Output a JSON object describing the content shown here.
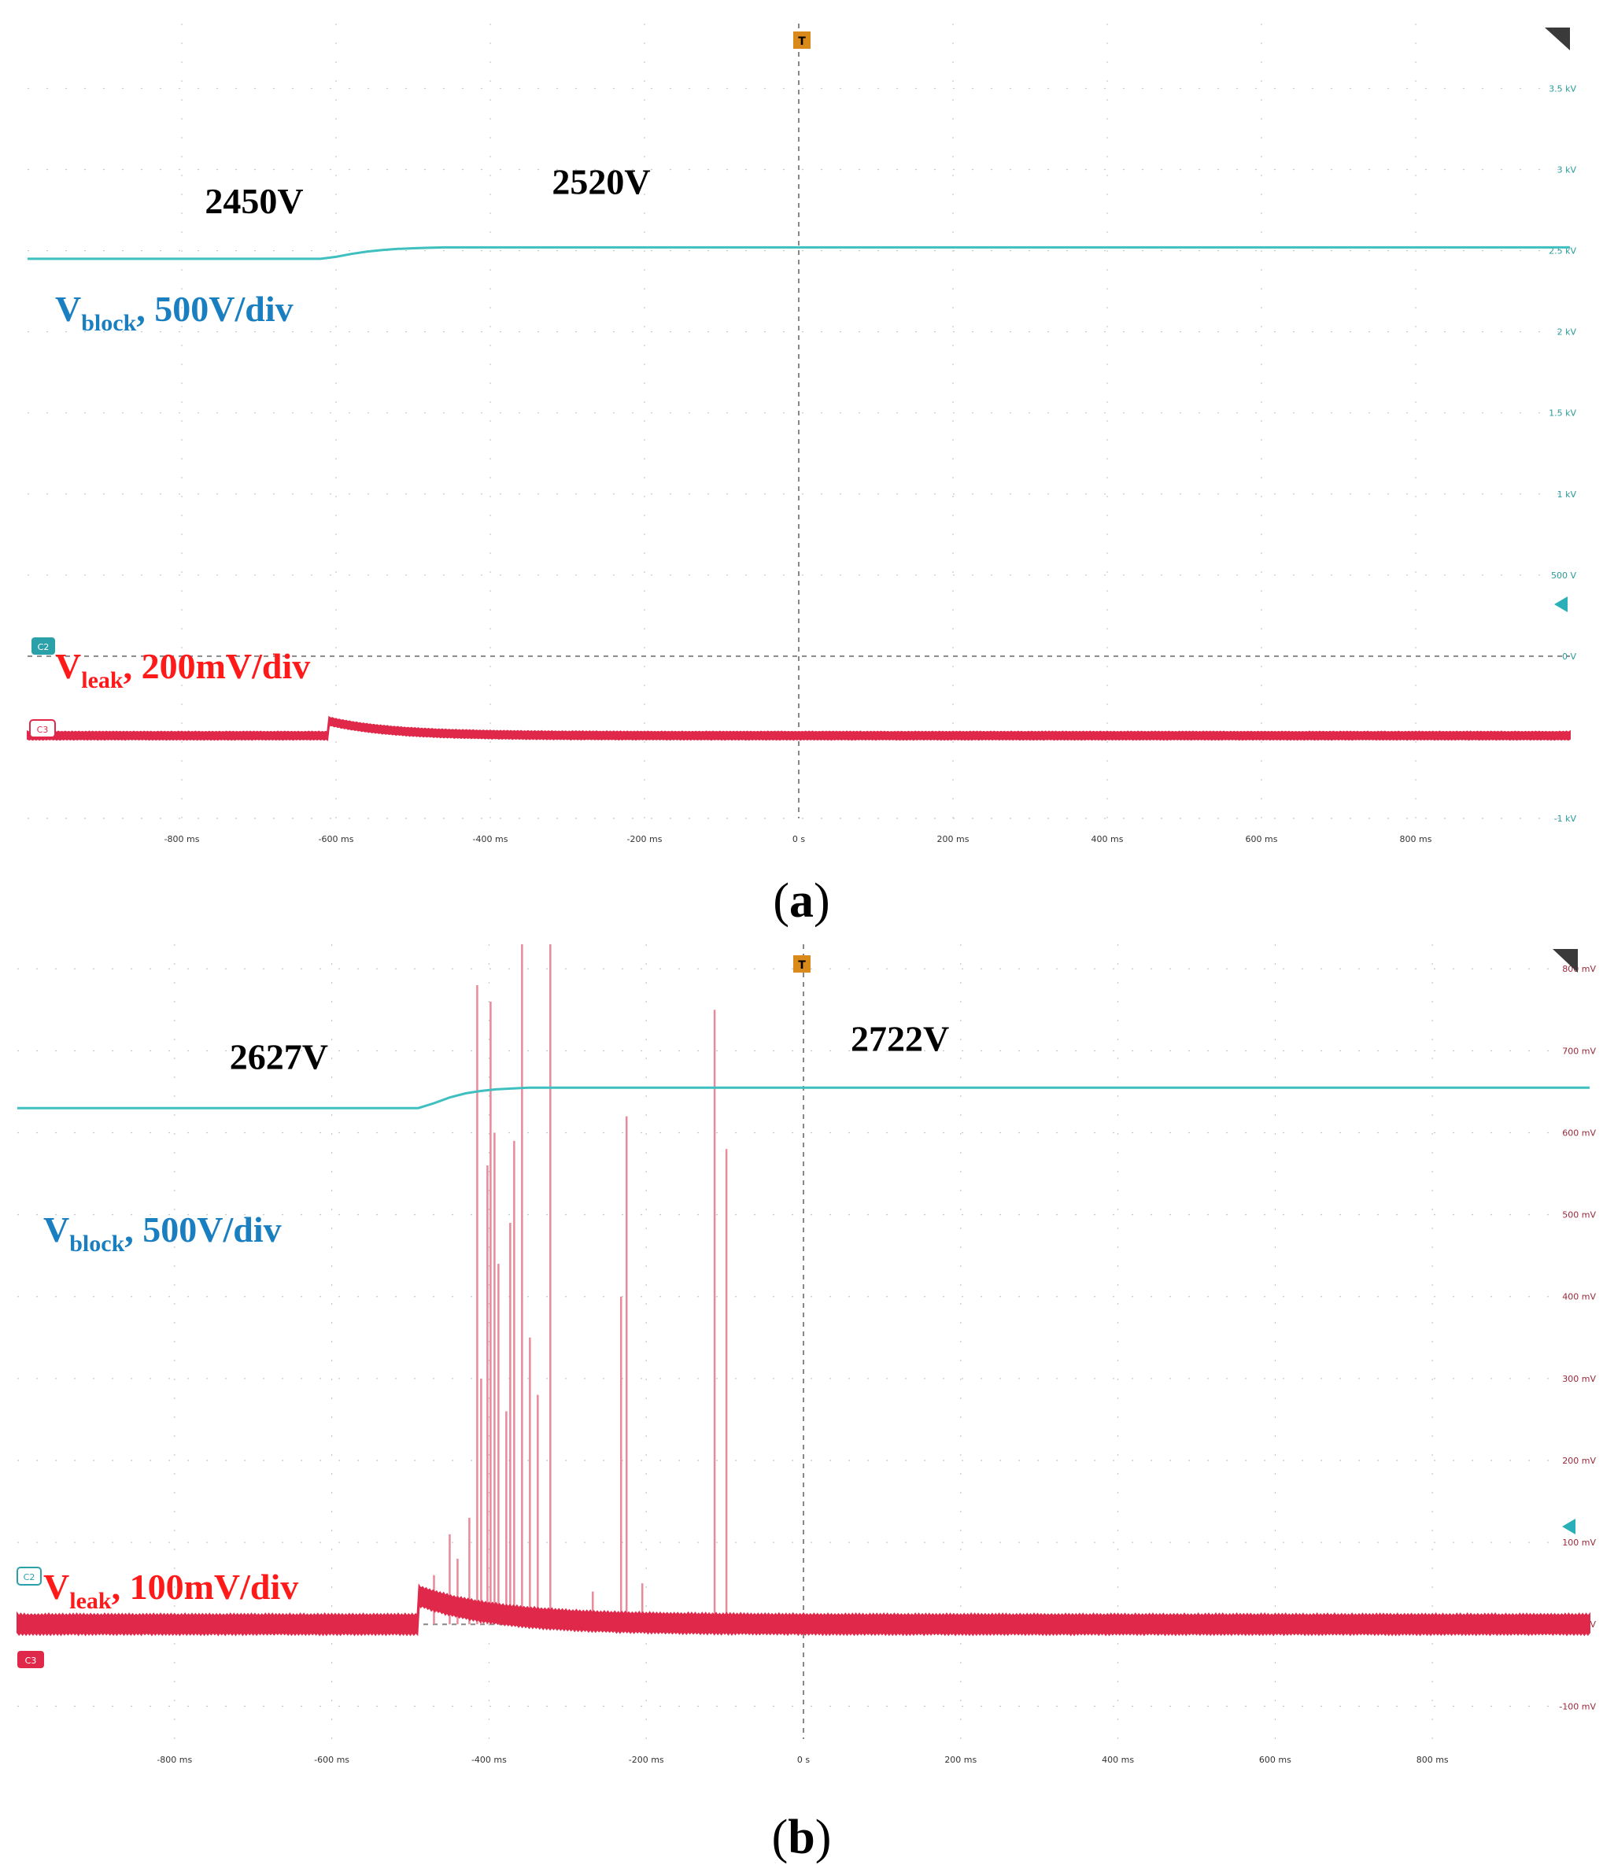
{
  "figure": {
    "panels": [
      {
        "caption_open": "(",
        "caption_letter": "a",
        "caption_close": ")"
      },
      {
        "caption_open": "(",
        "caption_letter": "b",
        "caption_close": ")"
      }
    ]
  },
  "colors": {
    "vblock_trace": "#3fbfbf",
    "vleak_trace": "#e0284a",
    "vblock_label": "#1a7fc0",
    "vleak_label": "#ff1a1a",
    "right_axis_a": "#2a9a9a",
    "right_axis_b": "#9a2a3a",
    "grid": "#c8c8c8"
  },
  "chart_data": [
    {
      "type": "line",
      "panel": "a",
      "x_tick_labels": [
        "-800 ms",
        "-600 ms",
        "-400 ms",
        "-200 ms",
        "0 s",
        "200 ms",
        "400 ms",
        "600 ms",
        "800 ms"
      ],
      "x_ticks_ms": [
        -800,
        -600,
        -400,
        -200,
        0,
        200,
        400,
        600,
        800
      ],
      "xlim_ms": [
        -1000,
        1000
      ],
      "y_right_tick_labels": [
        "3.5 kV",
        "3 kV",
        "2.5 kV",
        "2 kV",
        "1.5 kV",
        "1 kV",
        "500 V",
        "0 V",
        "-1 kV"
      ],
      "y_right_ticks_v": [
        3500,
        3000,
        2500,
        2000,
        1500,
        1000,
        500,
        0,
        -1000
      ],
      "ylim_v": [
        -1000,
        3900
      ],
      "grid": true,
      "trigger_marker": "T",
      "channel_badges": [
        "C2",
        "C3"
      ],
      "series": [
        {
          "name": "Vblock",
          "label_main": "V",
          "label_sub": "block",
          "label_rest": ", 500V/div",
          "x_ms": [
            -1000,
            -620,
            -600,
            -580,
            -560,
            -540,
            -520,
            -500,
            -480,
            -460,
            1000
          ],
          "values_v": [
            2450,
            2450,
            2462,
            2480,
            2494,
            2504,
            2511,
            2515,
            2518,
            2520,
            2520
          ]
        },
        {
          "name": "Vleak",
          "label_main": "V",
          "label_sub": "leak",
          "label_rest": ", 200mV/div",
          "baseline_level_v": -490,
          "noise_band_v": 40,
          "step_at_ms": -610,
          "step_peak_v": -400,
          "decay_ms": 80
        }
      ],
      "annotations": [
        {
          "text": "2450V",
          "x_ms": -770,
          "y_v": 2730
        },
        {
          "text": "2520V",
          "x_ms": -320,
          "y_v": 2850
        }
      ]
    },
    {
      "type": "line",
      "panel": "b",
      "x_tick_labels": [
        "-800 ms",
        "-600 ms",
        "-400 ms",
        "-200 ms",
        "0 s",
        "200 ms",
        "400 ms",
        "600 ms",
        "800 ms"
      ],
      "x_ticks_ms": [
        -800,
        -600,
        -400,
        -200,
        0,
        200,
        400,
        600,
        800
      ],
      "xlim_ms": [
        -1000,
        1000
      ],
      "y_right_tick_labels": [
        "800 mV",
        "700 mV",
        "600 mV",
        "500 mV",
        "400 mV",
        "300 mV",
        "200 mV",
        "100 mV",
        "0 V",
        "-100 mV"
      ],
      "y_right_ticks_mv": [
        800,
        700,
        600,
        500,
        400,
        300,
        200,
        100,
        0,
        -100
      ],
      "ylim_mv": [
        -140,
        830
      ],
      "grid": true,
      "trigger_marker": "T",
      "channel_badges": [
        "C2",
        "C3"
      ],
      "series": [
        {
          "name": "Vblock",
          "label_main": "V",
          "label_sub": "block",
          "label_rest": ", 500V/div",
          "x_ms": [
            -1000,
            -490,
            -470,
            -450,
            -430,
            -410,
            -390,
            -370,
            -350,
            1000
          ],
          "values_mv": [
            630,
            630,
            636,
            643,
            648,
            651,
            653,
            654,
            655,
            655
          ]
        },
        {
          "name": "Vleak",
          "label_main": "V",
          "label_sub": "leak",
          "label_rest": ", 100mV/div",
          "baseline_level_mv": 0,
          "noise_band_mv": 20,
          "step_at_ms": -490,
          "step_peak_mv": 35,
          "decay_ms": 100,
          "spikes": [
            {
              "x_ms": -470,
              "peak_mv": 60
            },
            {
              "x_ms": -450,
              "peak_mv": 110
            },
            {
              "x_ms": -440,
              "peak_mv": 80
            },
            {
              "x_ms": -425,
              "peak_mv": 130
            },
            {
              "x_ms": -415,
              "peak_mv": 780
            },
            {
              "x_ms": -410,
              "peak_mv": 300
            },
            {
              "x_ms": -402,
              "peak_mv": 560
            },
            {
              "x_ms": -398,
              "peak_mv": 760
            },
            {
              "x_ms": -393,
              "peak_mv": 600
            },
            {
              "x_ms": -388,
              "peak_mv": 440
            },
            {
              "x_ms": -378,
              "peak_mv": 260
            },
            {
              "x_ms": -373,
              "peak_mv": 490
            },
            {
              "x_ms": -368,
              "peak_mv": 590
            },
            {
              "x_ms": -358,
              "peak_mv": 830
            },
            {
              "x_ms": -348,
              "peak_mv": 350
            },
            {
              "x_ms": -338,
              "peak_mv": 280
            },
            {
              "x_ms": -322,
              "peak_mv": 830
            },
            {
              "x_ms": -268,
              "peak_mv": 40
            },
            {
              "x_ms": -232,
              "peak_mv": 400
            },
            {
              "x_ms": -225,
              "peak_mv": 620
            },
            {
              "x_ms": -205,
              "peak_mv": 50
            },
            {
              "x_ms": -113,
              "peak_mv": 750
            },
            {
              "x_ms": -98,
              "peak_mv": 580
            }
          ]
        }
      ],
      "annotations": [
        {
          "text": "2627V",
          "x_ms": -730,
          "y_v_mv": 678
        },
        {
          "text": "2722V",
          "x_ms": 60,
          "y_v_mv": 700
        }
      ]
    }
  ]
}
